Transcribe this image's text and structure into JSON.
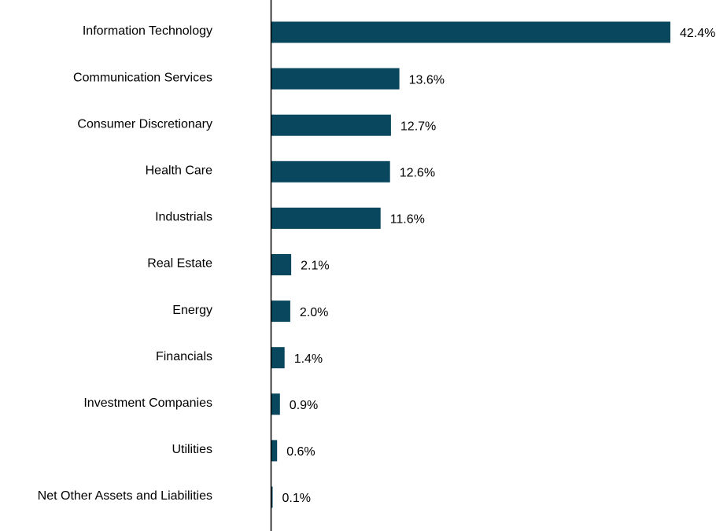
{
  "chart_data": {
    "type": "bar",
    "orientation": "horizontal",
    "title": "",
    "xlabel": "",
    "ylabel": "",
    "grid": false,
    "legend": "none",
    "bar_color": "#08475e",
    "axis_color": "#000000",
    "categories": [
      "Information Technology",
      "Communication Services",
      "Consumer Discretionary",
      "Health Care",
      "Industrials",
      "Real Estate",
      "Energy",
      "Financials",
      "Investment Companies",
      "Utilities",
      "Net Other Assets and Liabilities"
    ],
    "values": [
      42.4,
      13.6,
      12.7,
      12.6,
      11.6,
      2.1,
      2.0,
      1.4,
      0.9,
      0.6,
      0.1
    ],
    "value_labels": [
      "42.4%",
      "13.6%",
      "12.7%",
      "12.6%",
      "11.6%",
      "2.1%",
      "2.0%",
      "1.4%",
      "0.9%",
      "0.6%",
      "0.1%"
    ],
    "xlim": [
      0,
      42.4
    ]
  }
}
